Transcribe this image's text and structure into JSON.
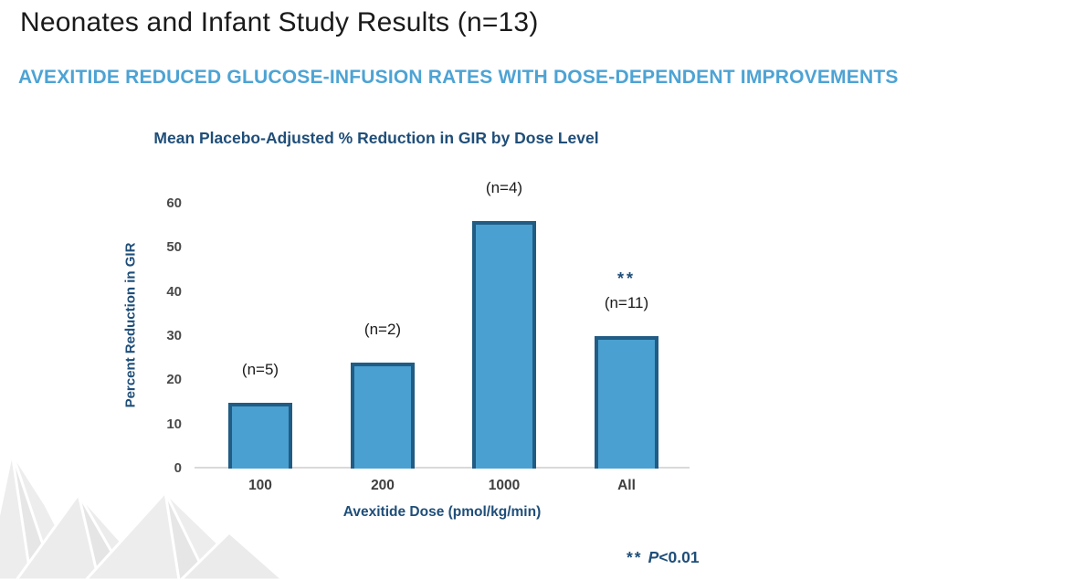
{
  "header": {
    "title": "Neonates and Infant Study Results (n=13)",
    "subtitle": "AVEXITIDE REDUCED GLUCOSE-INFUSION RATES WITH DOSE-DEPENDENT IMPROVEMENTS"
  },
  "chart_data": {
    "type": "bar",
    "title": "Mean Placebo-Adjusted % Reduction in GIR by Dose Level",
    "xlabel": "Avexitide Dose (pmol/kg/min)",
    "ylabel": "Percent Reduction in GIR",
    "categories": [
      "100",
      "200",
      "1000",
      "All"
    ],
    "values": [
      15,
      24,
      56,
      30
    ],
    "annotations": [
      "(n=5)",
      "(n=2)",
      "(n=4)",
      "(n=11)"
    ],
    "significance": [
      "",
      "",
      "",
      "**"
    ],
    "yticks": [
      0,
      10,
      20,
      30,
      40,
      50,
      60
    ],
    "ylim": [
      0,
      60
    ],
    "grid": false,
    "legend": "none",
    "bar_fill_color": "#4AA0D0",
    "bar_border_color": "#215C85"
  },
  "footnote": {
    "stars": "**",
    "p_label": "P",
    "p_value": "<0.01"
  },
  "colors": {
    "title_text": "#1A1A1A",
    "subtitle_text": "#4DA3D4",
    "axis_accent": "#1F4E79",
    "tick_text": "#4A4A4A",
    "baseline": "#D9D9D9",
    "watermark_gray": "#EBEBEB"
  }
}
